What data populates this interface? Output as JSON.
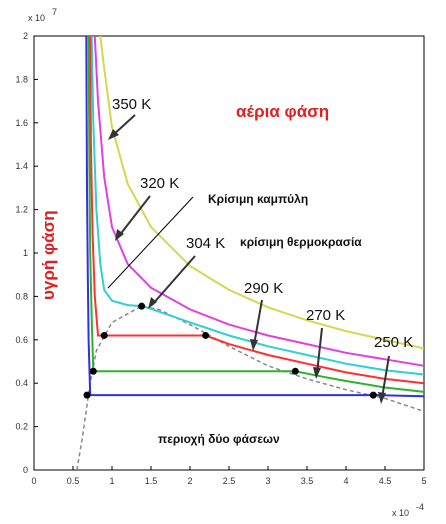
{
  "chart_data": {
    "type": "line",
    "title": "",
    "xlabel": "",
    "ylabel": "",
    "x_multiplier": "x 10",
    "x_exponent": "-4",
    "y_multiplier": "x 10",
    "y_exponent": "7",
    "xlim": [
      0,
      5
    ],
    "ylim": [
      0,
      2
    ],
    "x_ticks": [
      "0",
      "0.5",
      "1",
      "1.5",
      "2",
      "2.5",
      "3",
      "3.5",
      "4",
      "4.5",
      "5"
    ],
    "y_ticks": [
      "0",
      "0.2",
      "0.4",
      "0.6",
      "0.8",
      "1",
      "1.2",
      "1.4",
      "1.6",
      "1.8",
      "2"
    ],
    "grid": false,
    "series": [
      {
        "name": "350 K",
        "color": "#d6d650",
        "points": [
          [
            0.85,
            2.0
          ],
          [
            0.9,
            1.85
          ],
          [
            1.0,
            1.58
          ],
          [
            1.2,
            1.32
          ],
          [
            1.5,
            1.12
          ],
          [
            2.0,
            0.94
          ],
          [
            2.5,
            0.83
          ],
          [
            3.0,
            0.75
          ],
          [
            3.5,
            0.69
          ],
          [
            4.0,
            0.64
          ],
          [
            4.5,
            0.6
          ],
          [
            5.0,
            0.56
          ]
        ]
      },
      {
        "name": "320 K",
        "color": "#e040e0",
        "points": [
          [
            0.78,
            2.0
          ],
          [
            0.82,
            1.7
          ],
          [
            0.9,
            1.35
          ],
          [
            1.0,
            1.12
          ],
          [
            1.2,
            0.95
          ],
          [
            1.5,
            0.84
          ],
          [
            2.0,
            0.74
          ],
          [
            2.5,
            0.67
          ],
          [
            3.0,
            0.62
          ],
          [
            3.5,
            0.58
          ],
          [
            4.0,
            0.54
          ],
          [
            4.5,
            0.51
          ],
          [
            5.0,
            0.48
          ]
        ]
      },
      {
        "name": "304 K",
        "color": "#30d0d0",
        "points": [
          [
            0.74,
            2.0
          ],
          [
            0.76,
            1.6
          ],
          [
            0.8,
            1.2
          ],
          [
            0.85,
            0.95
          ],
          [
            0.9,
            0.83
          ],
          [
            1.0,
            0.78
          ],
          [
            1.2,
            0.76
          ],
          [
            1.4,
            0.755
          ],
          [
            1.6,
            0.73
          ],
          [
            2.0,
            0.68
          ],
          [
            2.5,
            0.62
          ],
          [
            3.0,
            0.57
          ],
          [
            3.5,
            0.53
          ],
          [
            4.0,
            0.49
          ],
          [
            4.5,
            0.46
          ],
          [
            5.0,
            0.44
          ]
        ]
      },
      {
        "name": "290 K",
        "color": "#ff3030",
        "points": [
          [
            0.72,
            2.0
          ],
          [
            0.73,
            1.5
          ],
          [
            0.75,
            1.1
          ],
          [
            0.78,
            0.8
          ],
          [
            0.82,
            0.62
          ],
          [
            2.2,
            0.62
          ],
          [
            2.5,
            0.58
          ],
          [
            3.0,
            0.53
          ],
          [
            3.5,
            0.49
          ],
          [
            4.0,
            0.45
          ],
          [
            4.5,
            0.42
          ],
          [
            5.0,
            0.4
          ]
        ]
      },
      {
        "name": "270 K",
        "color": "#30b030",
        "points": [
          [
            0.7,
            2.0
          ],
          [
            0.71,
            1.4
          ],
          [
            0.72,
            1.0
          ],
          [
            0.74,
            0.7
          ],
          [
            0.76,
            0.455
          ],
          [
            3.35,
            0.455
          ],
          [
            3.7,
            0.43
          ],
          [
            4.0,
            0.41
          ],
          [
            4.5,
            0.38
          ],
          [
            5.0,
            0.36
          ]
        ]
      },
      {
        "name": "250 K",
        "color": "#3030e0",
        "points": [
          [
            0.67,
            2.0
          ],
          [
            0.68,
            1.3
          ],
          [
            0.69,
            0.9
          ],
          [
            0.7,
            0.6
          ],
          [
            0.72,
            0.345
          ],
          [
            4.35,
            0.345
          ],
          [
            5.0,
            0.34
          ]
        ]
      }
    ],
    "coexistence_dome": {
      "style": "dashed",
      "color": "#888888",
      "points": [
        [
          0.55,
          0.0
        ],
        [
          0.62,
          0.15
        ],
        [
          0.68,
          0.3
        ],
        [
          0.72,
          0.4
        ],
        [
          0.8,
          0.55
        ],
        [
          1.0,
          0.68
        ],
        [
          1.38,
          0.755
        ],
        [
          1.6,
          0.74
        ],
        [
          2.0,
          0.67
        ],
        [
          2.5,
          0.57
        ],
        [
          3.0,
          0.48
        ],
        [
          3.5,
          0.42
        ],
        [
          4.0,
          0.37
        ],
        [
          4.5,
          0.33
        ],
        [
          5.0,
          0.27
        ]
      ]
    },
    "markers": [
      [
        0.68,
        0.345
      ],
      [
        4.35,
        0.345
      ],
      [
        0.76,
        0.455
      ],
      [
        3.35,
        0.455
      ],
      [
        0.9,
        0.62
      ],
      [
        2.2,
        0.62
      ],
      [
        1.38,
        0.755
      ]
    ],
    "labels": {
      "t350": "350 K",
      "t320": "320 K",
      "t304": "304 K",
      "t290": "290 K",
      "t270": "270 K",
      "t250": "250 K",
      "critical_curve": "Κρίσιμη καμπύλη",
      "critical_temp": "κρίσιμη θερμοκρασία",
      "gas_phase": "αέρια φάση",
      "liquid_phase": "υγρή φάση",
      "two_phase": "περιοχή δύο φάσεων"
    }
  }
}
